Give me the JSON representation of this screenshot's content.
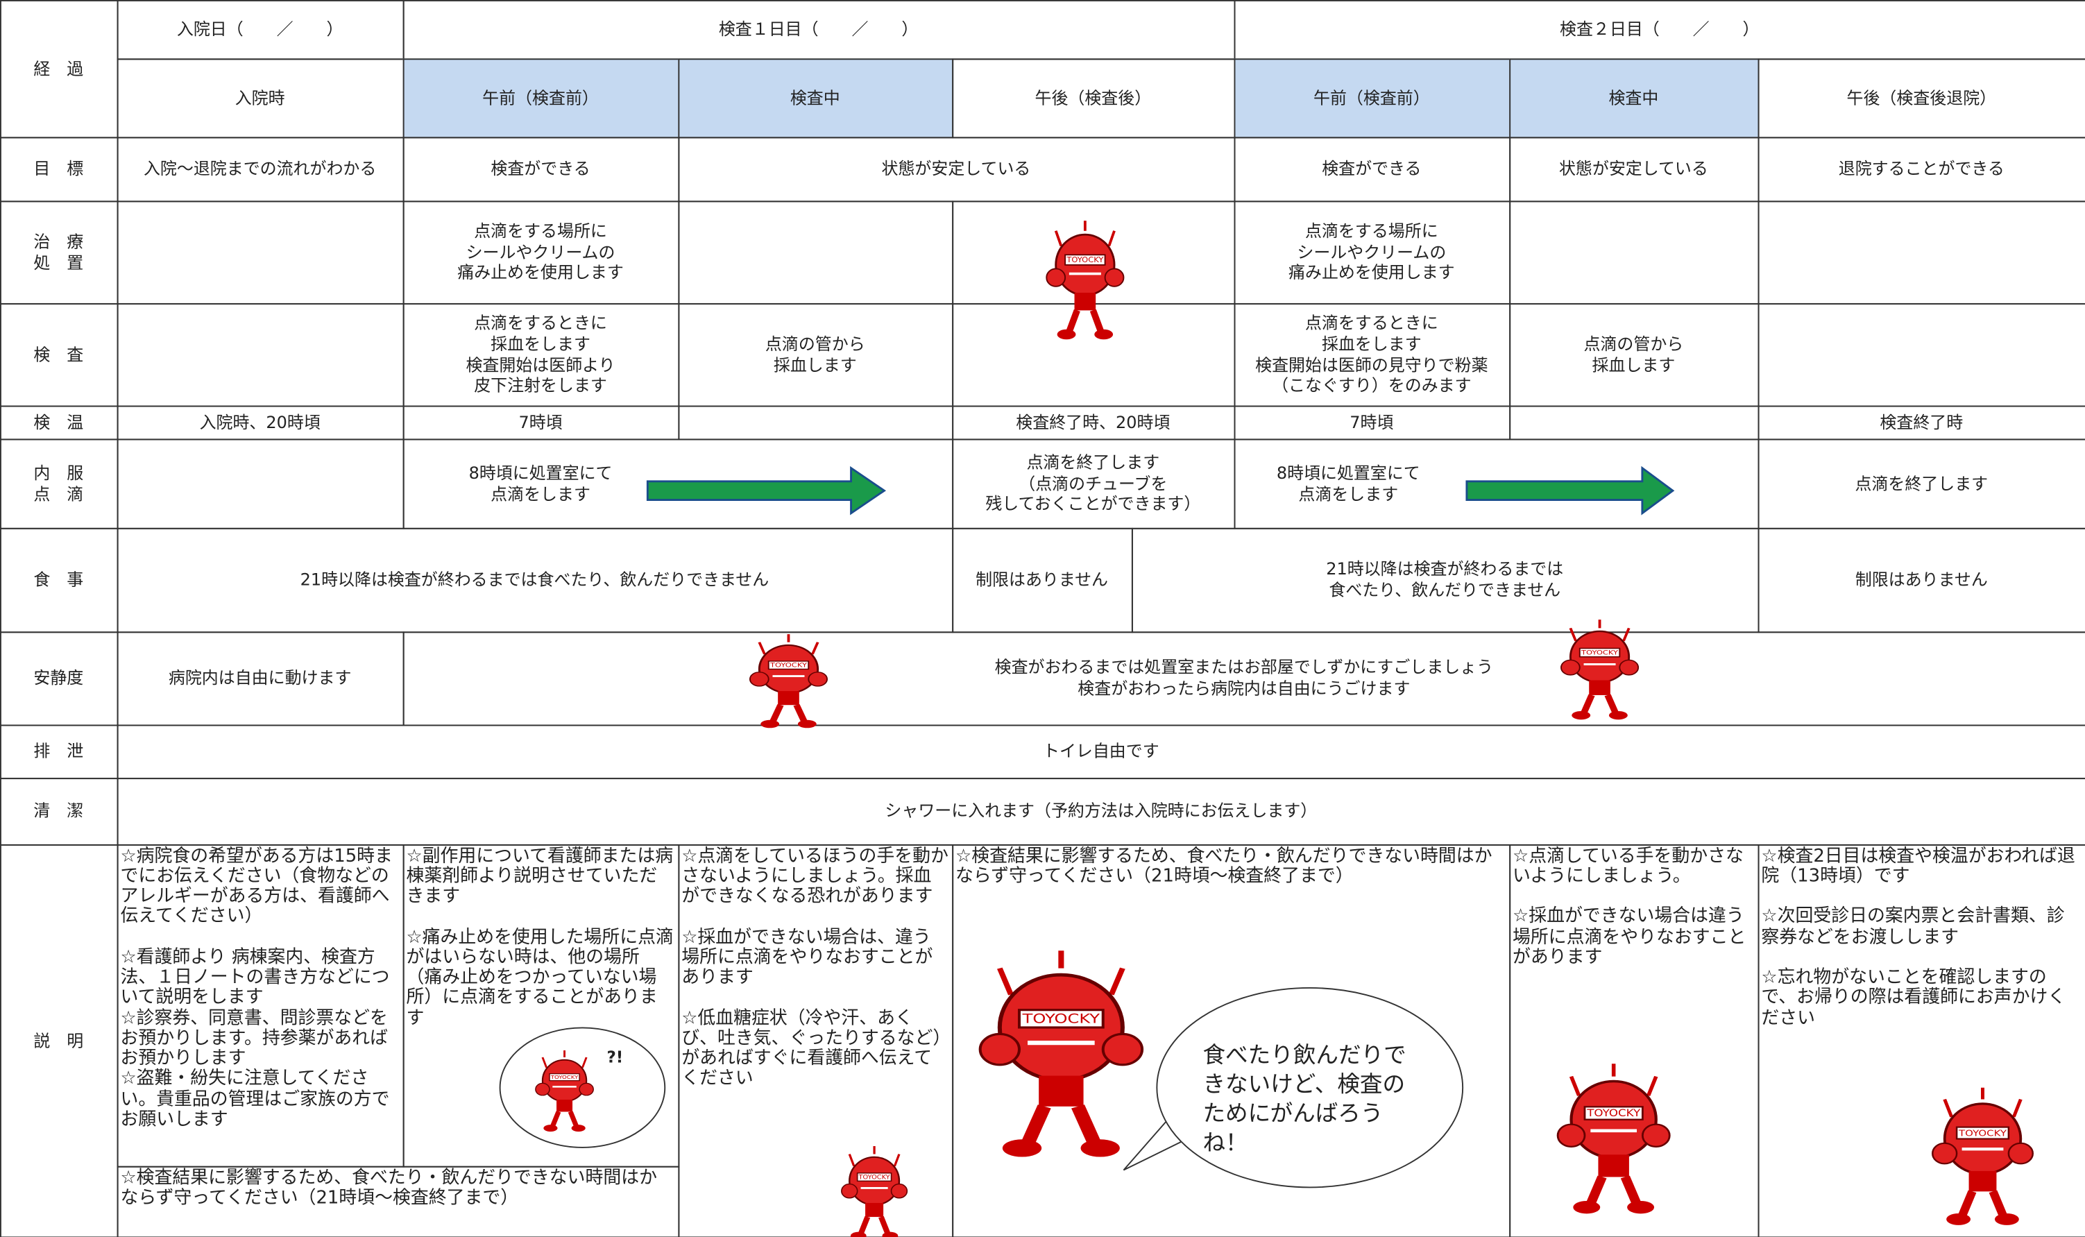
{
  "header": {
    "label": "経　過",
    "day0": "入院日（　　／　　）",
    "day1": "検査１日目（　　／　　）",
    "day2": "検査２日目（　　／　　）",
    "periods": [
      "入院時",
      "午前（検査前）",
      "検査中",
      "午後（検査後）",
      "午前（検査前）",
      "検査中",
      "午後（検査後退院）"
    ]
  },
  "rows": [
    {
      "label": "目　標",
      "cells": [
        "入院～退院までの流れがわかる",
        "検査ができる",
        "状態が安定している",
        "検査ができる",
        "状態が安定している",
        "退院することができる"
      ]
    },
    {
      "label": "治　療\n処　置",
      "cells": [
        "点滴をする場所に\nシールやクリームの\n痛み止めを使用します",
        "点滴をする場所に\nシールやクリームの\n痛み止めを使用します"
      ]
    },
    {
      "label": "検　査",
      "cells": [
        "点滴をするときに\n採血をします\n検査開始は医師より\n皮下注射をします",
        "点滴の管から\n採血します",
        "点滴をするときに\n採血をします\n検査開始は医師の見守りで粉薬\n（こなぐすり）をのみます",
        "点滴の管から\n採血します"
      ]
    },
    {
      "label": "検　温",
      "cells": [
        "入院時、20時頃",
        "7時頃",
        "検査終了時、20時頃",
        "7時頃",
        "検査終了時"
      ]
    },
    {
      "label": "内　服\n点　滴",
      "cells": [
        "8時頃に処置室にて\n点滴をします",
        "点滴を終了します\n（点滴のチューブを\n残しておくことができます）",
        "8時頃に処置室にて\n点滴をします",
        "点滴を終了します"
      ]
    },
    {
      "label": "食　事",
      "cells": [
        "21時以降は検査が終わるまでは食べたり、飲んだりできません",
        "制限はありません",
        "21時以降は検査が終わるまでは\n食べたり、飲んだりできません",
        "制限はありません"
      ]
    },
    {
      "label": "安静度",
      "cells": [
        "病院内は自由に動けます",
        "検査がおわるまでは処置室またはお部屋でしずかにすごしましょう\n検査がおわったら病院内は自由にうごけます"
      ]
    },
    {
      "label": "排　泄",
      "cells": [
        "トイレ自由です"
      ]
    },
    {
      "label": "清　潔",
      "cells": [
        "シャワーに入れます（予約方法は入院時にお伝えします）"
      ]
    },
    {
      "label": "説　明",
      "cells": [
        "☆病院食の希望がある方は15時までにお伝えください（食物などのアレルギーがある方は、看護師へ伝えてください）\n\n☆看護師より 病棟案内、検査方法、１日ノートの書き方などについて説明をします\n☆診察券、同意書、問診票などをお預かりします。持参薬があればお預かりします\n☆盗難・紛失に注意してください。貴重品の管理はご家族の方でお願いします",
        "☆副作用について看護師または病棟薬剤師より説明させていただきます\n\n☆痛み止めを使用した場所に点滴がはいらない時は、他の場所（痛み止めをつかっていない場所）に点滴をすることがあります",
        "☆検査結果に影響するため、食べたり・飲んだりできない時間はかならず守ってください（21時頃～検査終了まで）",
        "☆点滴をしているほうの手を動かさないようにしましょう。採血ができなくなる恐れがあります\n\n☆採血ができない場合は、違う場所に点滴をやりなおすことがあります\n\n☆低血糖症状（冷や汗、あくび、吐き気、ぐったりするなど）があればすぐに看護師へ伝えてください",
        "☆検査結果に影響するため、食べたり・飲んだりできない時間はかならず守ってください（21時頃～検査終了まで）",
        "☆点滴している手を動かさないようにしましょう。\n\n☆採血ができない場合は違う場所に点滴をやりなおすことがあります",
        "☆検査2日目は検査や検温がおわれば退院（13時頃）です\n\n☆次回受診日の案内票と会計書類、診察券などをお渡しします\n\n☆忘れ物がないことを確認しますので、お帰りの際は看護師にお声かけください"
      ]
    }
  ],
  "bubble": "食べたり飲んだりで\nきないけど、検査の\nためにがんばろう\nね！",
  "small_bubble": "?!"
}
